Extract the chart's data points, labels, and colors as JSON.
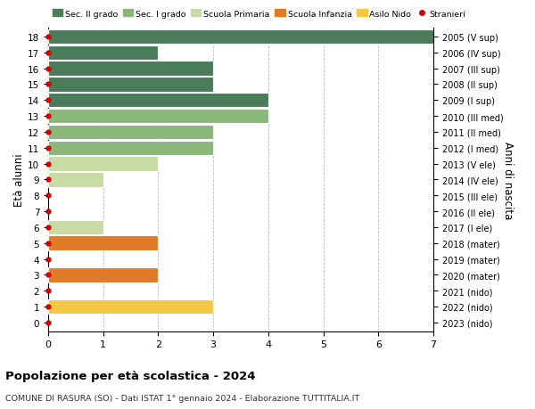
{
  "ages": [
    0,
    1,
    2,
    3,
    4,
    5,
    6,
    7,
    8,
    9,
    10,
    11,
    12,
    13,
    14,
    15,
    16,
    17,
    18
  ],
  "years": [
    "2023 (nido)",
    "2022 (nido)",
    "2021 (nido)",
    "2020 (mater)",
    "2019 (mater)",
    "2018 (mater)",
    "2017 (I ele)",
    "2016 (II ele)",
    "2015 (III ele)",
    "2014 (IV ele)",
    "2013 (V ele)",
    "2012 (I med)",
    "2011 (II med)",
    "2010 (III med)",
    "2009 (I sup)",
    "2008 (II sup)",
    "2007 (III sup)",
    "2006 (IV sup)",
    "2005 (V sup)"
  ],
  "values": [
    0,
    3,
    0,
    2,
    0,
    2,
    1,
    0,
    0,
    1,
    2,
    3,
    3,
    4,
    4,
    3,
    3,
    2,
    7
  ],
  "bar_colors": [
    "#f5c842",
    "#f5c842",
    "#f5c842",
    "#e07b2a",
    "#e07b2a",
    "#e07b2a",
    "#c9dba4",
    "#c9dba4",
    "#c9dba4",
    "#c9dba4",
    "#c9dba4",
    "#8ab87a",
    "#8ab87a",
    "#8ab87a",
    "#4a7c59",
    "#4a7c59",
    "#4a7c59",
    "#4a7c59",
    "#4a7c59"
  ],
  "stranieri_color": "#cc0000",
  "title_main": "Popolazione per età scolastica - 2024",
  "title_sub": "COMUNE DI RASURA (SO) - Dati ISTAT 1° gennaio 2024 - Elaborazione TUTTITALIA.IT",
  "ylabel_left": "Età alunni",
  "ylabel_right": "Anni di nascita",
  "xlim": [
    0,
    7
  ],
  "xticks": [
    0,
    1,
    2,
    3,
    4,
    5,
    6,
    7
  ],
  "legend_labels": [
    "Sec. II grado",
    "Sec. I grado",
    "Scuola Primaria",
    "Scuola Infanzia",
    "Asilo Nido",
    "Stranieri"
  ],
  "legend_colors": [
    "#4a7c59",
    "#8ab87a",
    "#c9dba4",
    "#e07b2a",
    "#f5c842",
    "#cc0000"
  ],
  "background_color": "#ffffff",
  "grid_color": "#bbbbbb",
  "bar_height": 0.92
}
